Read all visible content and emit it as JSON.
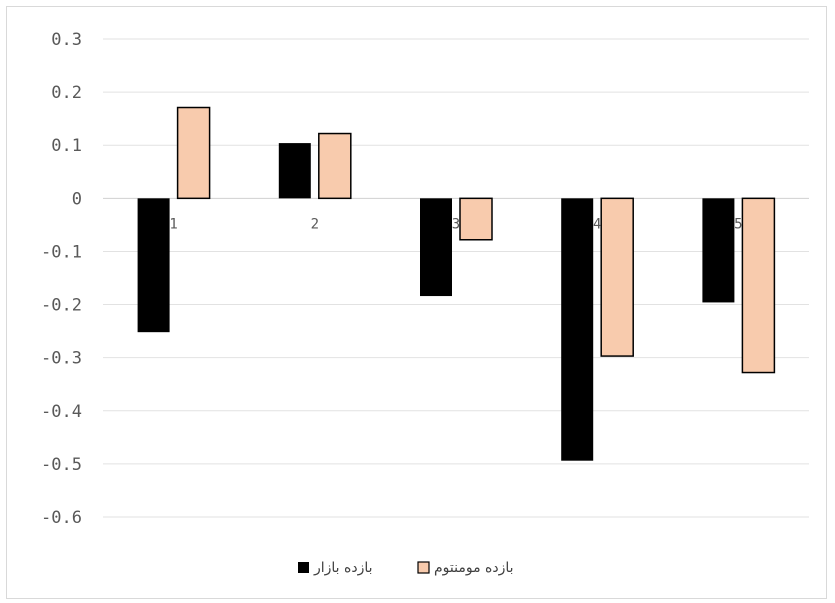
{
  "chart_data": {
    "type": "bar",
    "categories": [
      "1",
      "2",
      "3",
      "4",
      "5"
    ],
    "series": [
      {
        "name": "بازده بازار",
        "values": [
          -0.252,
          0.104,
          -0.184,
          -0.494,
          -0.196
        ],
        "color": "#000000"
      },
      {
        "name": "بازده مومنتوم",
        "values": [
          0.171,
          0.122,
          -0.078,
          -0.297,
          -0.328
        ],
        "color": "#f8cbad"
      }
    ],
    "ylim": [
      -0.6,
      0.3
    ],
    "yticks": [
      "0.3",
      "0.2",
      "0.1",
      "0",
      "-0.1",
      "-0.2",
      "-0.3",
      "-0.4",
      "-0.5",
      "-0.6"
    ],
    "ytick_values": [
      0.3,
      0.2,
      0.1,
      0,
      -0.1,
      -0.2,
      -0.3,
      -0.4,
      -0.5,
      -0.6
    ],
    "grid": true,
    "legend_position": "bottom",
    "title": "",
    "xlabel": "",
    "ylabel": ""
  }
}
